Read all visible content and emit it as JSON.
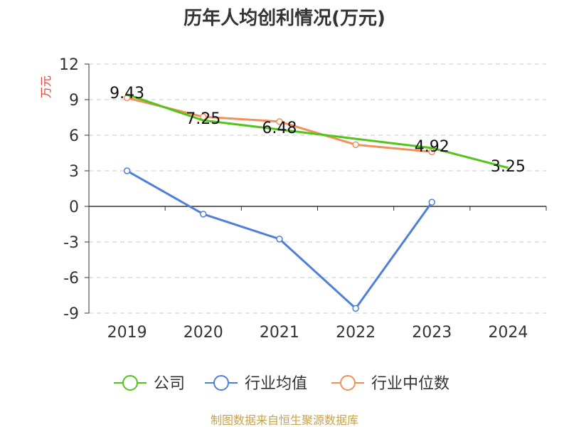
{
  "chart_data": {
    "type": "line",
    "title": "历年人均创利情况(万元)",
    "ylabel": "万元",
    "xlabel": "",
    "categories": [
      "2019",
      "2020",
      "2021",
      "2022",
      "2023",
      "2024"
    ],
    "ylim": [
      -9,
      12
    ],
    "yticks": [
      12,
      9,
      6,
      3,
      0,
      -3,
      -6,
      -9
    ],
    "grid": true,
    "legend_position": "bottom",
    "series": [
      {
        "name": "公司",
        "color": "#52c41a",
        "values": [
          9.43,
          7.25,
          6.48,
          null,
          4.92,
          3.25
        ],
        "labels": [
          "9.43",
          "7.25",
          "6.48",
          "",
          "4.92",
          "3.25"
        ]
      },
      {
        "name": "行业均值",
        "color": "#4f7fdb",
        "values": [
          3.0,
          -0.65,
          -2.75,
          -8.6,
          0.35,
          null
        ]
      },
      {
        "name": "行业中位数",
        "color": "#f2905a",
        "values": [
          9.15,
          7.55,
          7.15,
          5.2,
          4.6,
          null
        ]
      }
    ]
  },
  "source_text": "制图数据来自恒生聚源数据库"
}
